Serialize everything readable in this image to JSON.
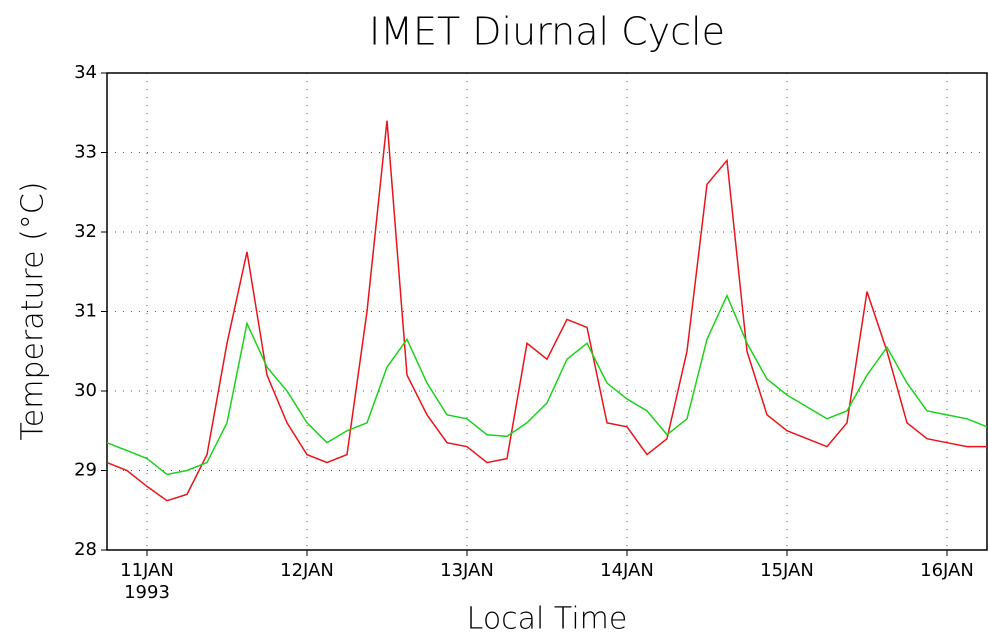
{
  "chart_data": {
    "type": "line",
    "title": "IMET Diurnal Cycle",
    "x_label": "Local Time",
    "y_label": "Temperature (°C)",
    "x_sublabel": "1993",
    "x": [
      10.75,
      10.875,
      11,
      11.125,
      11.25,
      11.375,
      11.5,
      11.625,
      11.75,
      11.875,
      12,
      12.125,
      12.25,
      12.375,
      12.5,
      12.625,
      12.75,
      12.875,
      13,
      13.125,
      13.25,
      13.375,
      13.5,
      13.625,
      13.75,
      13.875,
      14,
      14.125,
      14.25,
      14.375,
      14.5,
      14.625,
      14.75,
      14.875,
      15,
      15.125,
      15.25,
      15.375,
      15.5,
      15.625,
      15.75,
      15.875,
      16,
      16.125,
      16.25
    ],
    "series": [
      {
        "color": "#e8141c",
        "values": [
          29.1,
          29.0,
          28.8,
          28.62,
          28.7,
          29.2,
          30.6,
          31.75,
          30.2,
          29.6,
          29.2,
          29.1,
          29.2,
          31.0,
          33.4,
          30.2,
          29.7,
          29.35,
          29.3,
          29.1,
          29.15,
          30.6,
          30.4,
          30.9,
          30.8,
          29.6,
          29.55,
          29.2,
          29.4,
          30.5,
          32.6,
          32.9,
          30.5,
          29.7,
          29.5,
          29.4,
          29.3,
          29.6,
          31.25,
          30.5,
          29.6,
          29.4,
          29.35,
          29.3,
          29.3
        ]
      },
      {
        "color": "#1ed01e",
        "values": [
          29.35,
          29.25,
          29.15,
          28.95,
          29.0,
          29.1,
          29.6,
          30.85,
          30.3,
          30.0,
          29.6,
          29.35,
          29.5,
          29.6,
          30.3,
          30.65,
          30.1,
          29.7,
          29.65,
          29.45,
          29.43,
          29.6,
          29.85,
          30.4,
          30.6,
          30.1,
          29.9,
          29.75,
          29.45,
          29.65,
          30.65,
          31.2,
          30.6,
          30.15,
          29.95,
          29.8,
          29.65,
          29.75,
          30.2,
          30.55,
          30.1,
          29.75,
          29.7,
          29.65,
          29.55
        ]
      }
    ],
    "xlim": [
      10.75,
      16.25
    ],
    "xticks": [
      {
        "value": 11,
        "label": "11JAN"
      },
      {
        "value": 12,
        "label": "12JAN"
      },
      {
        "value": 13,
        "label": "13JAN"
      },
      {
        "value": 14,
        "label": "14JAN"
      },
      {
        "value": 15,
        "label": "15JAN"
      },
      {
        "value": 16,
        "label": "16JAN"
      }
    ],
    "ylim": [
      28,
      34
    ],
    "yticks": [
      28,
      29,
      30,
      31,
      32,
      33,
      34
    ],
    "grid": true
  }
}
